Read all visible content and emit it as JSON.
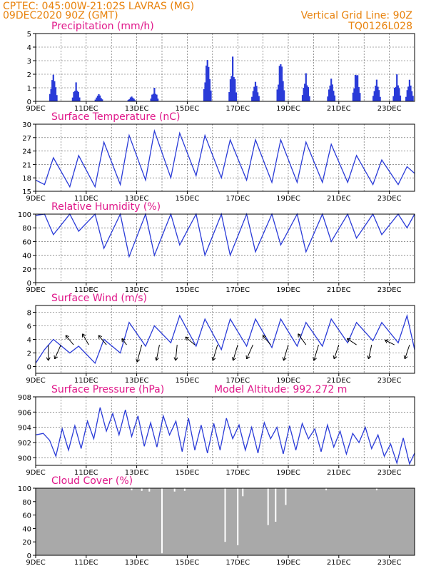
{
  "header": {
    "line1": "CPTEC:   045:00W-21:02S   LAVRAS (MG)",
    "line2": "09DEC2020  90Z (GMT)",
    "grid_note": "Vertical Grid Line: 90Z",
    "code": "TQ0126L028"
  },
  "x_tick_labels": [
    "9DEC",
    "11DEC",
    "13DEC",
    "15DEC",
    "17DEC",
    "19DEC",
    "21DEC",
    "23DEC"
  ],
  "colors": {
    "series": "#2a3bd8",
    "cloud": "#a9a9a9",
    "title": "#e0188a",
    "header": "#e8820c"
  },
  "chart_data": [
    {
      "type": "bar",
      "title": "Precipitation (mm/h)",
      "xlabel": "",
      "ylabel": "",
      "ylim": [
        0,
        5
      ],
      "yticks": [
        0,
        1,
        2,
        3,
        4,
        5
      ],
      "x_unit": "days since 9DEC",
      "xlim": [
        0,
        15
      ],
      "bursts": [
        {
          "day": 0.7,
          "peak": 2.2
        },
        {
          "day": 1.6,
          "peak": 1.4
        },
        {
          "day": 2.5,
          "peak": 0.6
        },
        {
          "day": 3.8,
          "peak": 0.4
        },
        {
          "day": 4.7,
          "peak": 1.0
        },
        {
          "day": 6.8,
          "peak": 3.6
        },
        {
          "day": 7.8,
          "peak": 3.3
        },
        {
          "day": 8.7,
          "peak": 1.6
        },
        {
          "day": 9.7,
          "peak": 3.5
        },
        {
          "day": 10.7,
          "peak": 2.1
        },
        {
          "day": 11.7,
          "peak": 1.8
        },
        {
          "day": 12.7,
          "peak": 2.6
        },
        {
          "day": 13.5,
          "peak": 1.7
        },
        {
          "day": 14.3,
          "peak": 2.0
        },
        {
          "day": 14.8,
          "peak": 1.7
        }
      ]
    },
    {
      "type": "line",
      "title": "Surface Temperature (nC)",
      "ylim": [
        15,
        30
      ],
      "yticks": [
        15,
        18,
        21,
        24,
        27,
        30
      ],
      "x": [
        0,
        0.35,
        0.7,
        1.35,
        1.7,
        2.35,
        2.7,
        3.35,
        3.7,
        4.35,
        4.7,
        5.35,
        5.7,
        6.35,
        6.7,
        7.35,
        7.7,
        8.35,
        8.7,
        9.35,
        9.7,
        10.35,
        10.7,
        11.35,
        11.7,
        12.35,
        12.7,
        13.35,
        13.7,
        14.35,
        14.7,
        15
      ],
      "values": [
        17.5,
        16.5,
        22.5,
        16.0,
        23.0,
        16.0,
        26.0,
        16.5,
        27.5,
        17.5,
        28.5,
        18.0,
        28.0,
        18.5,
        27.5,
        18.0,
        26.5,
        17.5,
        26.5,
        17.0,
        26.5,
        17.0,
        26.0,
        17.0,
        25.5,
        17.0,
        23.0,
        16.5,
        22.0,
        16.5,
        20.5,
        19.0
      ]
    },
    {
      "type": "line",
      "title": "Relative Humidity (%)",
      "ylim": [
        0,
        100
      ],
      "yticks": [
        0,
        20,
        40,
        60,
        80,
        100
      ],
      "x": [
        0,
        0.35,
        0.7,
        1.35,
        1.7,
        2.35,
        2.7,
        3.35,
        3.7,
        4.35,
        4.7,
        5.35,
        5.7,
        6.35,
        6.7,
        7.35,
        7.7,
        8.35,
        8.7,
        9.35,
        9.7,
        10.35,
        10.7,
        11.35,
        11.7,
        12.35,
        12.7,
        13.35,
        13.7,
        14.35,
        14.7,
        15
      ],
      "values": [
        98,
        100,
        70,
        100,
        75,
        100,
        50,
        100,
        38,
        100,
        40,
        100,
        55,
        100,
        40,
        100,
        40,
        100,
        45,
        100,
        55,
        100,
        45,
        100,
        60,
        100,
        65,
        100,
        70,
        100,
        80,
        100
      ]
    },
    {
      "type": "line",
      "title": "Surface Wind (m/s)",
      "ylim": [
        -1,
        9
      ],
      "yticks": [
        0,
        2,
        4,
        6,
        8
      ],
      "x": [
        0,
        0.35,
        0.7,
        1.35,
        1.7,
        2.35,
        2.7,
        3.35,
        3.7,
        4.35,
        4.7,
        5.35,
        5.7,
        6.35,
        6.7,
        7.35,
        7.7,
        8.35,
        8.7,
        9.35,
        9.7,
        10.35,
        10.7,
        11.35,
        11.7,
        12.35,
        12.7,
        13.35,
        13.7,
        14.35,
        14.7,
        15
      ],
      "values": [
        0.5,
        2.5,
        4.0,
        2.0,
        3.0,
        0.5,
        4.0,
        2.0,
        6.5,
        3.0,
        6.0,
        3.5,
        7.5,
        3.0,
        7.0,
        2.5,
        7.0,
        3.0,
        7.0,
        2.8,
        7.0,
        3.0,
        6.5,
        3.0,
        7.0,
        3.5,
        6.5,
        3.8,
        6.5,
        3.5,
        7.5,
        2.5
      ],
      "vectors": [
        {
          "day": 0.5,
          "u": 0.0,
          "v": -1.0
        },
        {
          "day": 1.0,
          "u": -0.4,
          "v": -0.9
        },
        {
          "day": 1.5,
          "u": -0.5,
          "v": 0.6
        },
        {
          "day": 2.1,
          "u": -0.4,
          "v": 0.7
        },
        {
          "day": 2.8,
          "u": -0.5,
          "v": 0.6
        },
        {
          "day": 3.6,
          "u": -0.3,
          "v": 0.4
        },
        {
          "day": 4.2,
          "u": -0.3,
          "v": -1.1
        },
        {
          "day": 4.9,
          "u": -0.2,
          "v": -1.0
        },
        {
          "day": 5.6,
          "u": -0.1,
          "v": -1.0
        },
        {
          "day": 6.3,
          "u": -0.6,
          "v": 0.5
        },
        {
          "day": 7.2,
          "u": -0.3,
          "v": -1.0
        },
        {
          "day": 8.0,
          "u": -0.3,
          "v": -1.0
        },
        {
          "day": 8.6,
          "u": -0.4,
          "v": -0.9
        },
        {
          "day": 9.3,
          "u": -0.5,
          "v": 0.6
        },
        {
          "day": 10.0,
          "u": -0.3,
          "v": -1.0
        },
        {
          "day": 10.7,
          "u": -0.5,
          "v": 0.7
        },
        {
          "day": 11.2,
          "u": -0.3,
          "v": -1.0
        },
        {
          "day": 12.0,
          "u": -0.3,
          "v": -0.9
        },
        {
          "day": 12.7,
          "u": -0.6,
          "v": 0.4
        },
        {
          "day": 13.3,
          "u": -0.2,
          "v": -0.9
        },
        {
          "day": 14.2,
          "u": -0.6,
          "v": 0.3
        },
        {
          "day": 14.8,
          "u": -0.3,
          "v": -0.9
        }
      ]
    },
    {
      "type": "line",
      "title": "Surface Pressure (hPa)",
      "annotation": "Model Altitude: 992.272  m",
      "ylim": [
        899,
        908
      ],
      "yticks": [
        900,
        902,
        904,
        906,
        908
      ],
      "x": [
        0,
        0.3,
        0.55,
        0.8,
        1.05,
        1.3,
        1.55,
        1.8,
        2.05,
        2.3,
        2.55,
        2.8,
        3.05,
        3.3,
        3.55,
        3.8,
        4.05,
        4.3,
        4.55,
        4.8,
        5.05,
        5.3,
        5.55,
        5.8,
        6.05,
        6.3,
        6.55,
        6.8,
        7.05,
        7.3,
        7.55,
        7.8,
        8.05,
        8.3,
        8.55,
        8.8,
        9.05,
        9.3,
        9.55,
        9.8,
        10.05,
        10.3,
        10.55,
        10.8,
        11.05,
        11.3,
        11.55,
        11.8,
        12.05,
        12.3,
        12.55,
        12.8,
        13.05,
        13.3,
        13.55,
        13.8,
        14.05,
        14.3,
        14.55,
        14.8,
        15
      ],
      "values": [
        903.0,
        903.2,
        902.3,
        900.2,
        903.8,
        901.0,
        904.2,
        901.2,
        904.8,
        902.5,
        906.6,
        903.5,
        905.8,
        903.0,
        906.3,
        902.8,
        905.5,
        901.5,
        904.6,
        901.4,
        905.5,
        903.0,
        904.8,
        900.8,
        905.2,
        901.0,
        904.3,
        900.6,
        904.5,
        901.0,
        905.2,
        902.5,
        904.3,
        901.0,
        904.0,
        900.6,
        904.6,
        902.5,
        904.0,
        900.5,
        904.2,
        901.0,
        904.5,
        902.5,
        903.8,
        900.8,
        904.3,
        901.4,
        903.5,
        900.5,
        903.2,
        902.0,
        904.0,
        901.2,
        903.0,
        900.2,
        901.8,
        899.3,
        902.6,
        899.2,
        900.6
      ]
    },
    {
      "type": "area",
      "title": "Cloud Cover (%)",
      "ylim": [
        0,
        100
      ],
      "yticks": [
        0,
        20,
        40,
        60,
        80,
        100
      ],
      "base": 100,
      "dips": [
        {
          "day": 3.8,
          "value": 97
        },
        {
          "day": 4.2,
          "value": 96
        },
        {
          "day": 4.5,
          "value": 95
        },
        {
          "day": 5.0,
          "value": 3
        },
        {
          "day": 5.5,
          "value": 95
        },
        {
          "day": 5.9,
          "value": 96
        },
        {
          "day": 7.5,
          "value": 20
        },
        {
          "day": 8.0,
          "value": 15
        },
        {
          "day": 8.2,
          "value": 88
        },
        {
          "day": 9.2,
          "value": 45
        },
        {
          "day": 9.5,
          "value": 50
        },
        {
          "day": 9.9,
          "value": 75
        },
        {
          "day": 11.5,
          "value": 97
        },
        {
          "day": 13.5,
          "value": 97
        }
      ]
    }
  ]
}
